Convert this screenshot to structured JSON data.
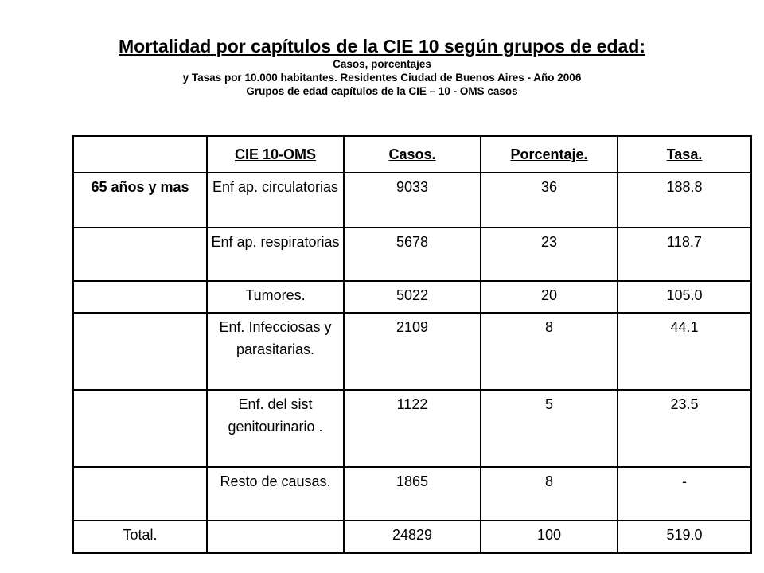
{
  "header": {
    "title": "Mortalidad por capítulos de la CIE 10 según grupos de edad:",
    "line1": "Casos, porcentajes",
    "line2": "y Tasas por 10.000 habitantes. Residentes Ciudad de Buenos Aires - Año 2006",
    "line3": "Grupos de edad capítulos de la CIE – 10 - OMS casos"
  },
  "table": {
    "columns": [
      "",
      "CIE 10-OMS",
      "Casos.",
      "Porcentaje.",
      "Tasa."
    ],
    "rows": [
      {
        "group": "65 años y mas",
        "cause": "Enf ap. circulatorias",
        "casos": "9033",
        "porcentaje": "36",
        "tasa": "188.8"
      },
      {
        "group": "",
        "cause": "Enf ap. respiratorias",
        "casos": "5678",
        "porcentaje": "23",
        "tasa": "118.7"
      },
      {
        "group": "",
        "cause": "Tumores.",
        "casos": "5022",
        "porcentaje": "20",
        "tasa": "105.0"
      },
      {
        "group": "",
        "cause": "Enf. Infecciosas y parasitarias.",
        "casos": "2109",
        "porcentaje": "8",
        "tasa": "44.1"
      },
      {
        "group": "",
        "cause": "Enf. del sist genitourinario .",
        "casos": "1122",
        "porcentaje": "5",
        "tasa": "23.5"
      },
      {
        "group": "",
        "cause": "Resto de causas.",
        "casos": "1865",
        "porcentaje": "8",
        "tasa": "-"
      }
    ],
    "total": {
      "label": "Total.",
      "cause": "",
      "casos": "24829",
      "porcentaje": "100",
      "tasa": "519.0"
    }
  }
}
